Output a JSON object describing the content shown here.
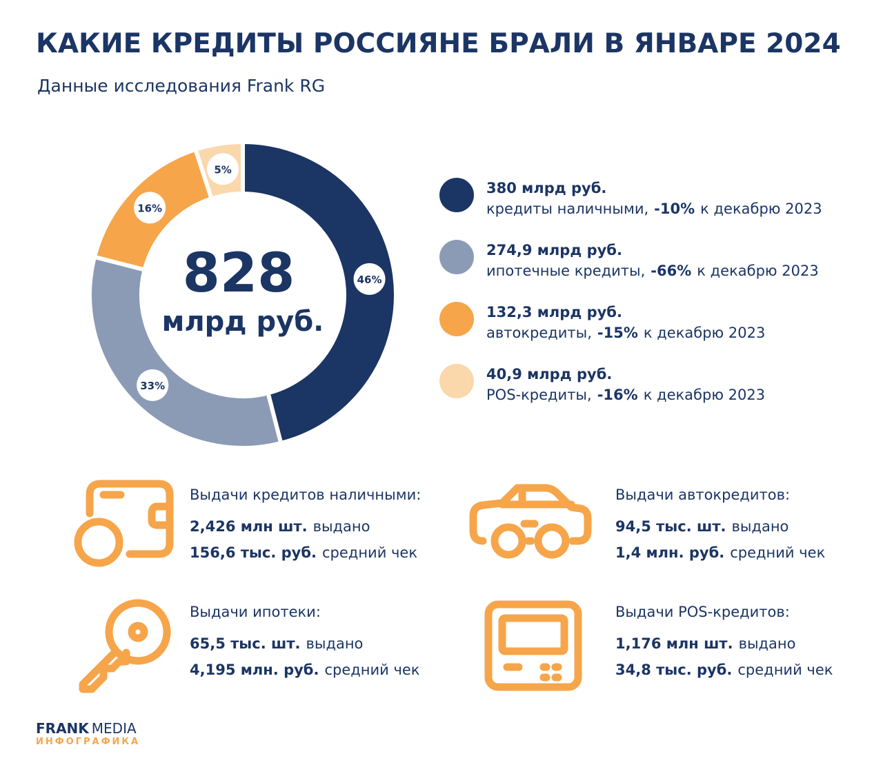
{
  "title": "КАКИЕ КРЕДИТЫ РОССИЯНЕ БРАЛИ В ЯНВАРЕ 2024",
  "subtitle": "Данные исследования Frank RG",
  "chart_data": {
    "type": "pie",
    "donut": true,
    "center_value": "828",
    "center_unit": "млрд руб.",
    "categories": [
      "кредиты наличными,",
      "ипотечные кредиты,",
      "автокредиты,",
      "POS-кредиты,"
    ],
    "values": [
      46,
      33,
      16,
      5
    ],
    "value_labels": [
      "46%",
      "33%",
      "16%",
      "5%"
    ],
    "colors": [
      "#1b3564",
      "#8c9bb5",
      "#f6a54a",
      "#fbd7ac"
    ],
    "amounts": [
      "380 млрд руб.",
      "274,9 млрд руб.",
      "132,3 млрд руб.",
      "40,9 млрд руб."
    ],
    "changes": [
      "-10%",
      "-66%",
      "-15%",
      "-16%"
    ],
    "change_suffixes": [
      "к декабрю 2023",
      "к декабрю 2023",
      "к декабрю 2023",
      "к декабрю 2023"
    ]
  },
  "stats": [
    {
      "title": "Выдачи кредитов наличными:",
      "lines": [
        {
          "bold": "2,426 млн шт.",
          "text": "выдано"
        },
        {
          "bold": "156,6 тыс. руб.",
          "text": "средний чек"
        }
      ]
    },
    {
      "title": "Выдачи автокредитов:",
      "lines": [
        {
          "bold": "94,5 тыс. шт.",
          "text": "выдано"
        },
        {
          "bold": "1,4 млн. руб.",
          "text": "средний чек"
        }
      ]
    },
    {
      "title": "Выдачи ипотеки:",
      "lines": [
        {
          "bold": "65,5 тыс. шт.",
          "text": "выдано"
        },
        {
          "bold": "4,195 млн. руб.",
          "text": "средний чек"
        }
      ]
    },
    {
      "title": "Выдачи POS-кредитов:",
      "lines": [
        {
          "bold": "1,176 млн шт.",
          "text": "выдано"
        },
        {
          "bold": "34,8 тыс. руб.",
          "text": "средний чек"
        }
      ]
    }
  ],
  "footer": {
    "brand": "FRANK",
    "brand2": "MEDIA",
    "tag": "ИНФОГРАФИКА"
  }
}
